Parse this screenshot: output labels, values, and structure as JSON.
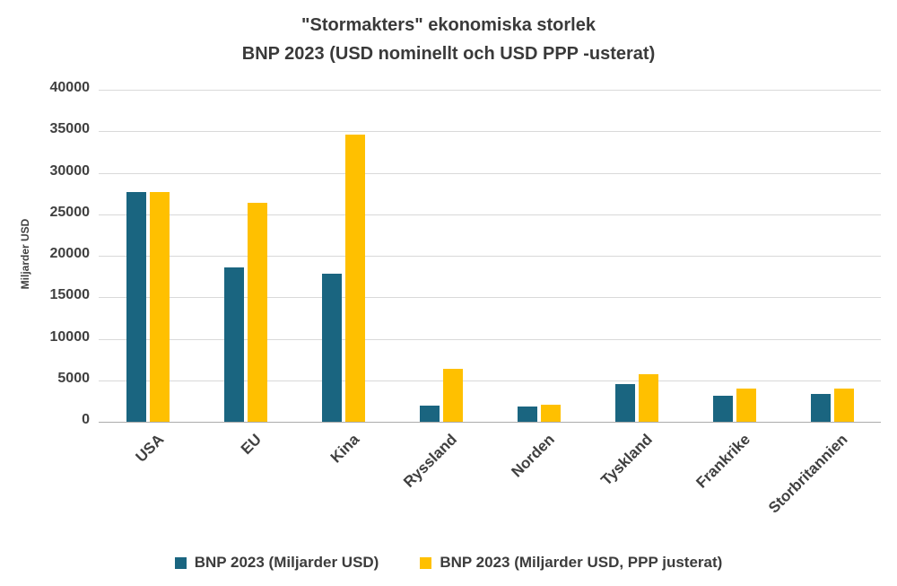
{
  "chart_data": {
    "type": "bar",
    "title": "\"Stormakters\" ekonomiska storlek",
    "subtitle": "BNP 2023 (USD nominellt och USD PPP -usterat)",
    "ylabel": "Miljarder USD",
    "xlabel": "",
    "categories": [
      "USA",
      "EU",
      "Kina",
      "Ryssland",
      "Norden",
      "Tyskland",
      "Frankrike",
      "Storbritannien"
    ],
    "series": [
      {
        "name": "BNP 2023 (Miljarder USD)",
        "color": "#1a6580",
        "values": [
          27700,
          18600,
          17800,
          2000,
          1800,
          4500,
          3100,
          3400
        ]
      },
      {
        "name": "BNP 2023 (Miljarder USD, PPP justerat)",
        "color": "#ffc000",
        "values": [
          27700,
          26400,
          34600,
          6400,
          2100,
          5700,
          4000,
          4000
        ]
      }
    ],
    "ylim": [
      0,
      40000
    ],
    "ytick_step": 5000,
    "grid": true,
    "legend_position": "bottom"
  }
}
